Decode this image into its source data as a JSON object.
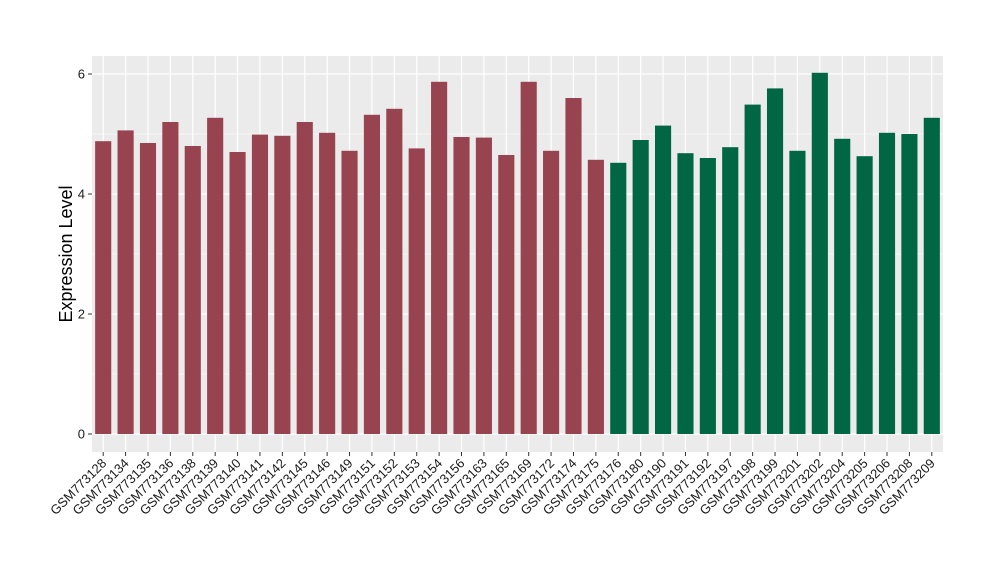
{
  "chart_data": {
    "type": "bar",
    "title": "",
    "xlabel": "",
    "ylabel": "Expression Level",
    "ylim": [
      -0.3,
      6.3
    ],
    "yticks": [
      0,
      2,
      4,
      6
    ],
    "grid": true,
    "legend": "none",
    "panel_background": "#EBEBEB",
    "grid_color": "#FFFFFF",
    "categories": [
      "GSM773128",
      "GSM773134",
      "GSM773135",
      "GSM773136",
      "GSM773138",
      "GSM773139",
      "GSM773140",
      "GSM773141",
      "GSM773142",
      "GSM773145",
      "GSM773146",
      "GSM773149",
      "GSM773151",
      "GSM773152",
      "GSM773153",
      "GSM773154",
      "GSM773156",
      "GSM773163",
      "GSM773165",
      "GSM773169",
      "GSM773172",
      "GSM773174",
      "GSM773175",
      "GSM773176",
      "GSM773180",
      "GSM773190",
      "GSM773191",
      "GSM773192",
      "GSM773197",
      "GSM773198",
      "GSM773199",
      "GSM773201",
      "GSM773202",
      "GSM773204",
      "GSM773205",
      "GSM773206",
      "GSM773208",
      "GSM773209"
    ],
    "values": [
      4.88,
      5.06,
      4.85,
      5.2,
      4.8,
      5.27,
      4.7,
      4.99,
      4.97,
      5.2,
      5.02,
      4.72,
      5.32,
      5.42,
      4.76,
      5.87,
      4.95,
      4.94,
      4.65,
      5.87,
      4.72,
      5.6,
      4.57,
      4.52,
      4.9,
      5.14,
      4.68,
      4.6,
      4.78,
      5.49,
      5.76,
      4.72,
      6.02,
      4.92,
      4.63,
      5.02,
      5.0,
      5.27
    ],
    "groups": [
      "a",
      "a",
      "a",
      "a",
      "a",
      "a",
      "a",
      "a",
      "a",
      "a",
      "a",
      "a",
      "a",
      "a",
      "a",
      "a",
      "a",
      "a",
      "a",
      "a",
      "a",
      "a",
      "a",
      "b",
      "b",
      "b",
      "b",
      "b",
      "b",
      "b",
      "b",
      "b",
      "b",
      "b",
      "b",
      "b",
      "b",
      "b"
    ],
    "group_colors": {
      "a": "#984350",
      "b": "#006644"
    }
  }
}
